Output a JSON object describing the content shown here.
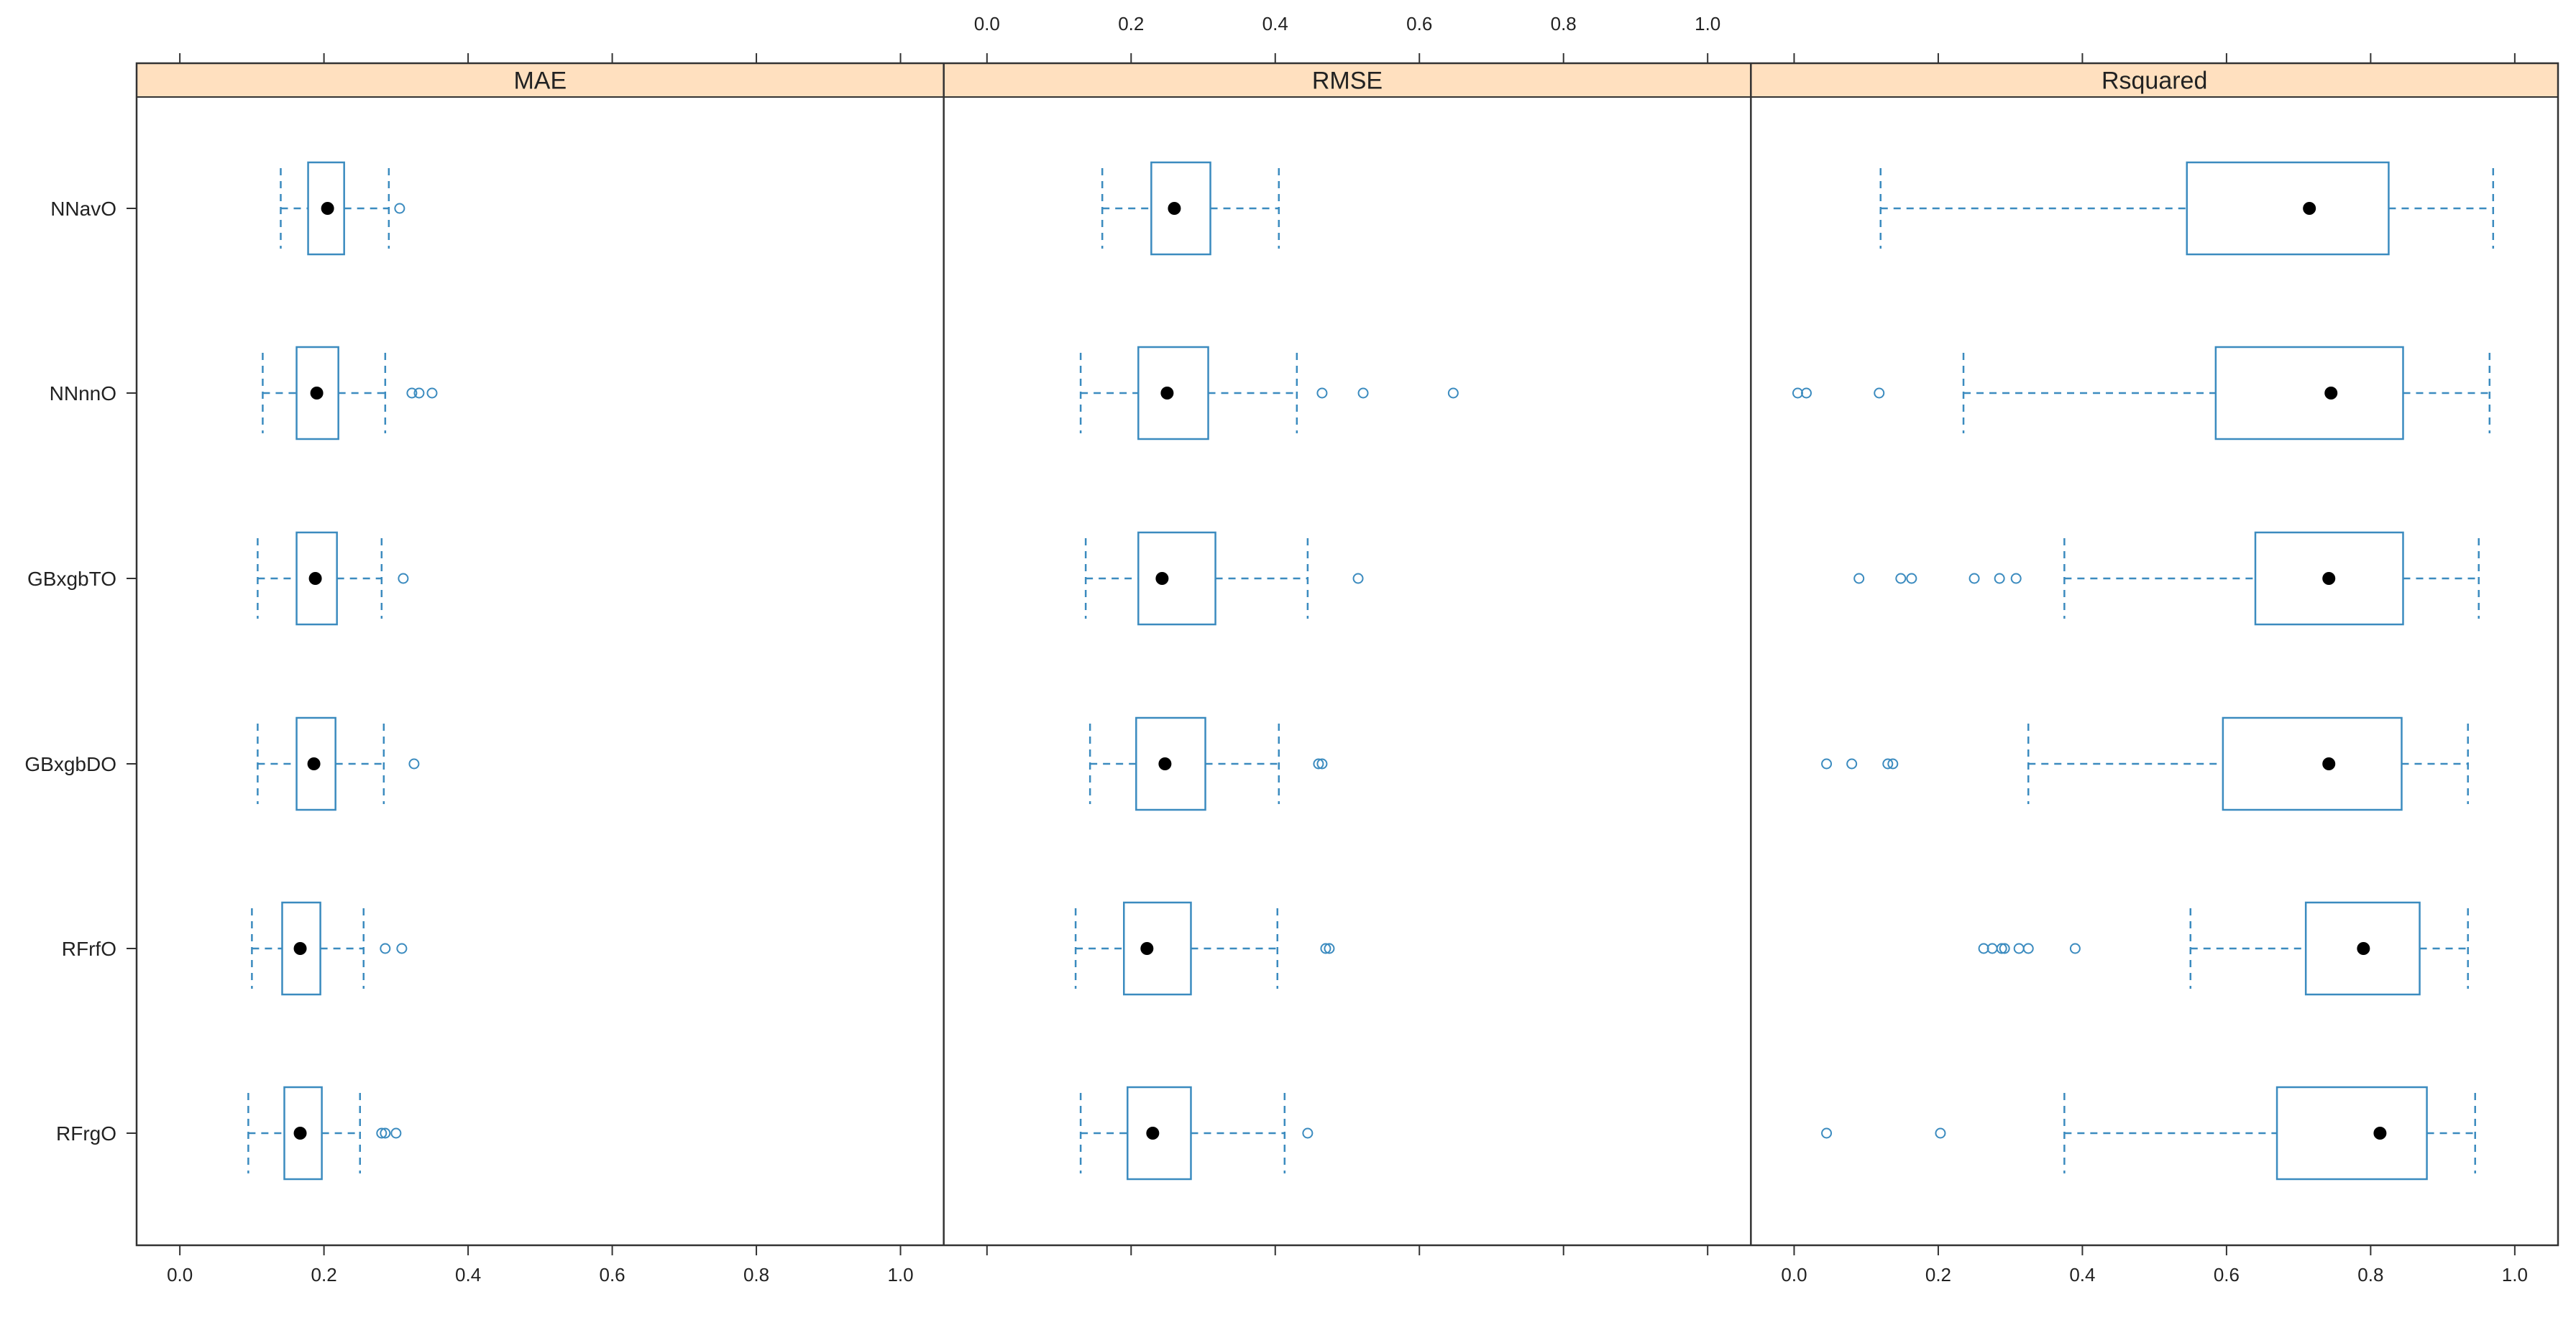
{
  "chart_data": {
    "type": "boxplot",
    "categories": [
      "NNavO",
      "NNnnO",
      "GBxgbTO",
      "GBxgbDO",
      "RFrfO",
      "RFrgO"
    ],
    "xlim": [
      -0.06,
      1.06
    ],
    "ticks": [
      0.0,
      0.2,
      0.4,
      0.6,
      0.8,
      1.0
    ],
    "tick_labels": [
      "0.0",
      "0.2",
      "0.4",
      "0.6",
      "0.8",
      "1.0"
    ],
    "colors": {
      "box": "#3b8bbf",
      "median_dot": "#000000",
      "strip_fill": "#ffe0bf",
      "frame": "#333333"
    },
    "panels": [
      {
        "metric": "MAE",
        "boxes": [
          {
            "model": "NNavO",
            "min": 0.14,
            "q1": 0.178,
            "median": 0.205,
            "q3": 0.228,
            "max": 0.29,
            "outliers": [
              0.305
            ]
          },
          {
            "model": "NNnnO",
            "min": 0.115,
            "q1": 0.162,
            "median": 0.19,
            "q3": 0.22,
            "max": 0.285,
            "outliers": [
              0.322,
              0.332,
              0.35
            ]
          },
          {
            "model": "GBxgbTO",
            "min": 0.108,
            "q1": 0.162,
            "median": 0.188,
            "q3": 0.218,
            "max": 0.28,
            "outliers": [
              0.31
            ]
          },
          {
            "model": "GBxgbDO",
            "min": 0.108,
            "q1": 0.162,
            "median": 0.186,
            "q3": 0.216,
            "max": 0.283,
            "outliers": [
              0.325
            ]
          },
          {
            "model": "RFrfO",
            "min": 0.1,
            "q1": 0.142,
            "median": 0.167,
            "q3": 0.195,
            "max": 0.255,
            "outliers": [
              0.285,
              0.308
            ]
          },
          {
            "model": "RFrgO",
            "min": 0.095,
            "q1": 0.145,
            "median": 0.167,
            "q3": 0.197,
            "max": 0.25,
            "outliers": [
              0.28,
              0.285,
              0.3
            ]
          }
        ]
      },
      {
        "metric": "RMSE",
        "boxes": [
          {
            "model": "NNavO",
            "min": 0.16,
            "q1": 0.228,
            "median": 0.26,
            "q3": 0.31,
            "max": 0.405,
            "outliers": []
          },
          {
            "model": "NNnnO",
            "min": 0.13,
            "q1": 0.21,
            "median": 0.25,
            "q3": 0.307,
            "max": 0.43,
            "outliers": [
              0.465,
              0.522,
              0.647
            ]
          },
          {
            "model": "GBxgbTO",
            "min": 0.137,
            "q1": 0.21,
            "median": 0.243,
            "q3": 0.317,
            "max": 0.445,
            "outliers": [
              0.515
            ]
          },
          {
            "model": "GBxgbDO",
            "min": 0.143,
            "q1": 0.207,
            "median": 0.247,
            "q3": 0.303,
            "max": 0.405,
            "outliers": [
              0.46,
              0.465
            ]
          },
          {
            "model": "RFrfO",
            "min": 0.123,
            "q1": 0.19,
            "median": 0.222,
            "q3": 0.283,
            "max": 0.403,
            "outliers": [
              0.47,
              0.475
            ]
          },
          {
            "model": "RFrgO",
            "min": 0.13,
            "q1": 0.195,
            "median": 0.23,
            "q3": 0.283,
            "max": 0.413,
            "outliers": [
              0.445
            ]
          }
        ]
      },
      {
        "metric": "Rsquared",
        "boxes": [
          {
            "model": "NNavO",
            "min": 0.12,
            "q1": 0.545,
            "median": 0.715,
            "q3": 0.825,
            "max": 0.97,
            "outliers": []
          },
          {
            "model": "NNnnO",
            "min": 0.235,
            "q1": 0.585,
            "median": 0.745,
            "q3": 0.845,
            "max": 0.965,
            "outliers": [
              0.005,
              0.017,
              0.118
            ]
          },
          {
            "model": "GBxgbTO",
            "min": 0.375,
            "q1": 0.64,
            "median": 0.742,
            "q3": 0.845,
            "max": 0.95,
            "outliers": [
              0.09,
              0.148,
              0.163,
              0.25,
              0.285,
              0.308
            ]
          },
          {
            "model": "GBxgbDO",
            "min": 0.325,
            "q1": 0.595,
            "median": 0.742,
            "q3": 0.843,
            "max": 0.935,
            "outliers": [
              0.045,
              0.08,
              0.13,
              0.137
            ]
          },
          {
            "model": "RFrfO",
            "min": 0.55,
            "q1": 0.71,
            "median": 0.79,
            "q3": 0.868,
            "max": 0.935,
            "outliers": [
              0.263,
              0.275,
              0.288,
              0.292,
              0.312,
              0.325,
              0.39
            ]
          },
          {
            "model": "RFrgO",
            "min": 0.375,
            "q1": 0.67,
            "median": 0.813,
            "q3": 0.878,
            "max": 0.945,
            "outliers": [
              0.045,
              0.203
            ]
          }
        ]
      }
    ]
  }
}
